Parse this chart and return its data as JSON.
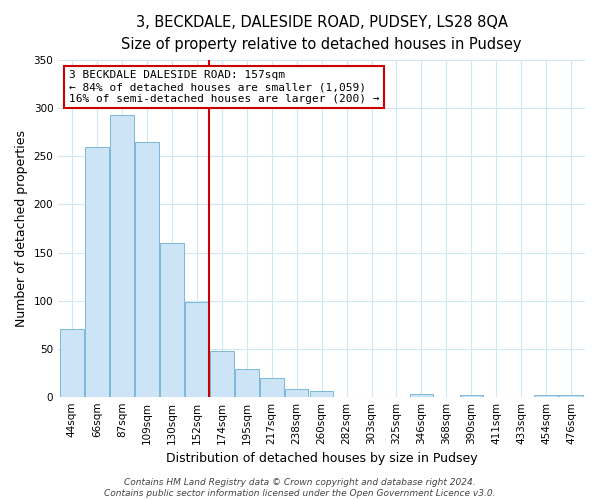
{
  "title": "3, BECKDALE, DALESIDE ROAD, PUDSEY, LS28 8QA",
  "subtitle": "Size of property relative to detached houses in Pudsey",
  "xlabel": "Distribution of detached houses by size in Pudsey",
  "ylabel": "Number of detached properties",
  "bar_labels": [
    "44sqm",
    "66sqm",
    "87sqm",
    "109sqm",
    "130sqm",
    "152sqm",
    "174sqm",
    "195sqm",
    "217sqm",
    "238sqm",
    "260sqm",
    "282sqm",
    "303sqm",
    "325sqm",
    "346sqm",
    "368sqm",
    "390sqm",
    "411sqm",
    "433sqm",
    "454sqm",
    "476sqm"
  ],
  "bar_values": [
    70,
    260,
    293,
    265,
    160,
    98,
    48,
    29,
    19,
    8,
    6,
    0,
    0,
    0,
    3,
    0,
    2,
    0,
    0,
    2,
    2
  ],
  "bar_color": "#cce4f5",
  "bar_edge_color": "#7ab8d9",
  "vline_index": 5,
  "vline_color": "#cc0000",
  "ylim": [
    0,
    350
  ],
  "yticks": [
    0,
    50,
    100,
    150,
    200,
    250,
    300,
    350
  ],
  "annotation_title": "3 BECKDALE DALESIDE ROAD: 157sqm",
  "annotation_line1": "← 84% of detached houses are smaller (1,059)",
  "annotation_line2": "16% of semi-detached houses are larger (200) →",
  "annotation_box_color": "#ffffff",
  "annotation_box_edge": "#cc0000",
  "footer1": "Contains HM Land Registry data © Crown copyright and database right 2024.",
  "footer2": "Contains public sector information licensed under the Open Government Licence v3.0.",
  "title_fontsize": 10.5,
  "subtitle_fontsize": 9.5,
  "axis_label_fontsize": 9,
  "tick_fontsize": 7.5,
  "annotation_fontsize": 8,
  "footer_fontsize": 6.5,
  "grid_color": "#d0e8f5"
}
